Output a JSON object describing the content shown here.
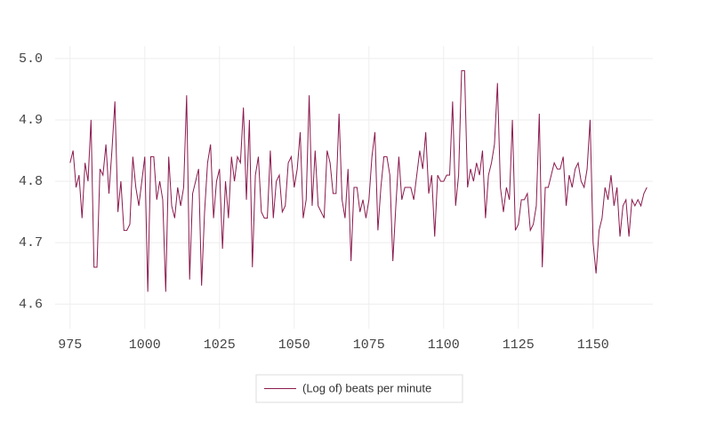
{
  "chart_data": {
    "type": "line",
    "x": [
      975,
      976,
      977,
      978,
      979,
      980,
      981,
      982,
      983,
      984,
      985,
      986,
      987,
      988,
      989,
      990,
      991,
      992,
      993,
      994,
      995,
      996,
      997,
      998,
      999,
      1000,
      1001,
      1002,
      1003,
      1004,
      1005,
      1006,
      1007,
      1008,
      1009,
      1010,
      1011,
      1012,
      1013,
      1014,
      1015,
      1016,
      1017,
      1018,
      1019,
      1020,
      1021,
      1022,
      1023,
      1024,
      1025,
      1026,
      1027,
      1028,
      1029,
      1030,
      1031,
      1032,
      1033,
      1034,
      1035,
      1036,
      1037,
      1038,
      1039,
      1040,
      1041,
      1042,
      1043,
      1044,
      1045,
      1046,
      1047,
      1048,
      1049,
      1050,
      1051,
      1052,
      1053,
      1054,
      1055,
      1056,
      1057,
      1058,
      1059,
      1060,
      1061,
      1062,
      1063,
      1064,
      1065,
      1066,
      1067,
      1068,
      1069,
      1070,
      1071,
      1072,
      1073,
      1074,
      1075,
      1076,
      1077,
      1078,
      1079,
      1080,
      1081,
      1082,
      1083,
      1084,
      1085,
      1086,
      1087,
      1088,
      1089,
      1090,
      1091,
      1092,
      1093,
      1094,
      1095,
      1096,
      1097,
      1098,
      1099,
      1100,
      1101,
      1102,
      1103,
      1104,
      1105,
      1106,
      1107,
      1108,
      1109,
      1110,
      1111,
      1112,
      1113,
      1114,
      1115,
      1116,
      1117,
      1118,
      1119,
      1120,
      1121,
      1122,
      1123,
      1124,
      1125,
      1126,
      1127,
      1128,
      1129,
      1130,
      1131,
      1132,
      1133,
      1134,
      1135,
      1136,
      1137,
      1138,
      1139,
      1140,
      1141,
      1142,
      1143,
      1144,
      1145,
      1146,
      1147,
      1148,
      1149,
      1150,
      1151,
      1152,
      1153,
      1154,
      1155,
      1156,
      1157,
      1158,
      1159,
      1160,
      1161,
      1162,
      1163,
      1164,
      1165,
      1166,
      1167,
      1168
    ],
    "series": [
      {
        "name": "(Log of) beats per minute",
        "color": "#8b1a4e",
        "values": [
          4.83,
          4.85,
          4.79,
          4.81,
          4.74,
          4.83,
          4.8,
          4.9,
          4.66,
          4.66,
          4.82,
          4.81,
          4.86,
          4.78,
          4.85,
          4.93,
          4.75,
          4.8,
          4.72,
          4.72,
          4.73,
          4.84,
          4.79,
          4.76,
          4.8,
          4.84,
          4.62,
          4.84,
          4.84,
          4.77,
          4.8,
          4.77,
          4.62,
          4.84,
          4.76,
          4.74,
          4.79,
          4.76,
          4.79,
          4.94,
          4.64,
          4.78,
          4.8,
          4.82,
          4.63,
          4.75,
          4.83,
          4.86,
          4.74,
          4.8,
          4.82,
          4.69,
          4.8,
          4.74,
          4.84,
          4.8,
          4.84,
          4.83,
          4.92,
          4.77,
          4.9,
          4.66,
          4.81,
          4.84,
          4.75,
          4.74,
          4.74,
          4.85,
          4.74,
          4.8,
          4.81,
          4.75,
          4.76,
          4.83,
          4.84,
          4.79,
          4.82,
          4.88,
          4.74,
          4.77,
          4.94,
          4.76,
          4.85,
          4.76,
          4.75,
          4.74,
          4.85,
          4.83,
          4.78,
          4.78,
          4.91,
          4.77,
          4.74,
          4.82,
          4.67,
          4.79,
          4.79,
          4.75,
          4.77,
          4.74,
          4.77,
          4.84,
          4.88,
          4.72,
          4.79,
          4.84,
          4.84,
          4.81,
          4.67,
          4.76,
          4.84,
          4.77,
          4.79,
          4.79,
          4.79,
          4.77,
          4.81,
          4.85,
          4.82,
          4.88,
          4.78,
          4.81,
          4.71,
          4.81,
          4.8,
          4.8,
          4.81,
          4.81,
          4.93,
          4.76,
          4.81,
          4.98,
          4.98,
          4.79,
          4.82,
          4.8,
          4.83,
          4.81,
          4.85,
          4.74,
          4.81,
          4.83,
          4.86,
          4.96,
          4.79,
          4.75,
          4.79,
          4.77,
          4.9,
          4.72,
          4.73,
          4.77,
          4.77,
          4.78,
          4.72,
          4.73,
          4.76,
          4.91,
          4.66,
          4.79,
          4.79,
          4.81,
          4.83,
          4.82,
          4.82,
          4.84,
          4.76,
          4.81,
          4.79,
          4.82,
          4.83,
          4.8,
          4.79,
          4.82,
          4.9,
          4.7,
          4.65,
          4.72,
          4.74,
          4.79,
          4.77,
          4.81,
          4.76,
          4.79,
          4.71,
          4.76,
          4.77,
          4.71,
          4.77,
          4.76,
          4.77,
          4.76,
          4.78,
          4.79
        ]
      }
    ],
    "xlim": [
      970,
      1170
    ],
    "xticks": [
      975,
      1000,
      1025,
      1050,
      1075,
      1100,
      1125,
      1150
    ],
    "ylim": [
      4.56,
      5.02
    ],
    "yticks": [
      4.6,
      4.7,
      4.8,
      4.9,
      {
        "value": 5,
        "label": "5.0"
      }
    ],
    "grid": true,
    "legend": "bottom"
  }
}
